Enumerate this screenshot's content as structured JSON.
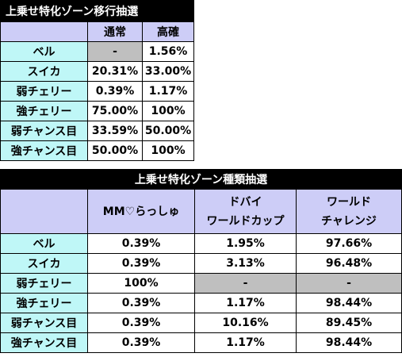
{
  "table1": {
    "title": "上乗せ特化ゾーン移行抽選",
    "headers": [
      "通常",
      "高確"
    ],
    "rows": [
      {
        "label": "ベル",
        "values": [
          "-",
          "1.56%"
        ],
        "gray": [
          true,
          false
        ]
      },
      {
        "label": "スイカ",
        "values": [
          "20.31%",
          "33.00%"
        ],
        "gray": [
          false,
          false
        ]
      },
      {
        "label": "弱チェリー",
        "values": [
          "0.39%",
          "1.17%"
        ],
        "gray": [
          false,
          false
        ]
      },
      {
        "label": "強チェリー",
        "values": [
          "75.00%",
          "100%"
        ],
        "gray": [
          false,
          false
        ]
      },
      {
        "label": "弱チャンス目",
        "values": [
          "33.59%",
          "50.00%"
        ],
        "gray": [
          false,
          false
        ]
      },
      {
        "label": "強チャンス目",
        "values": [
          "50.00%",
          "100%"
        ],
        "gray": [
          false,
          false
        ]
      }
    ]
  },
  "table2": {
    "title": "上乗せ特化ゾーン種類抽選",
    "headers": [
      {
        "line1": "MM♡らっしゅ",
        "line2": ""
      },
      {
        "line1": "ドバイ",
        "line2": "ワールドカップ"
      },
      {
        "line1": "ワールド",
        "line2": "チャレンジ"
      }
    ],
    "rows": [
      {
        "label": "ベル",
        "values": [
          "0.39%",
          "1.95%",
          "97.66%"
        ],
        "gray": [
          false,
          false,
          false
        ]
      },
      {
        "label": "スイカ",
        "values": [
          "0.39%",
          "3.13%",
          "96.48%"
        ],
        "gray": [
          false,
          false,
          false
        ]
      },
      {
        "label": "弱チェリー",
        "values": [
          "100%",
          "-",
          "-"
        ],
        "gray": [
          false,
          true,
          true
        ]
      },
      {
        "label": "強チェリー",
        "values": [
          "0.39%",
          "1.17%",
          "98.44%"
        ],
        "gray": [
          false,
          false,
          false
        ]
      },
      {
        "label": "弱チャンス目",
        "values": [
          "0.39%",
          "10.16%",
          "89.45%"
        ],
        "gray": [
          false,
          false,
          false
        ]
      },
      {
        "label": "強チャンス目",
        "values": [
          "0.39%",
          "1.17%",
          "98.44%"
        ],
        "gray": [
          false,
          false,
          false
        ]
      }
    ]
  }
}
